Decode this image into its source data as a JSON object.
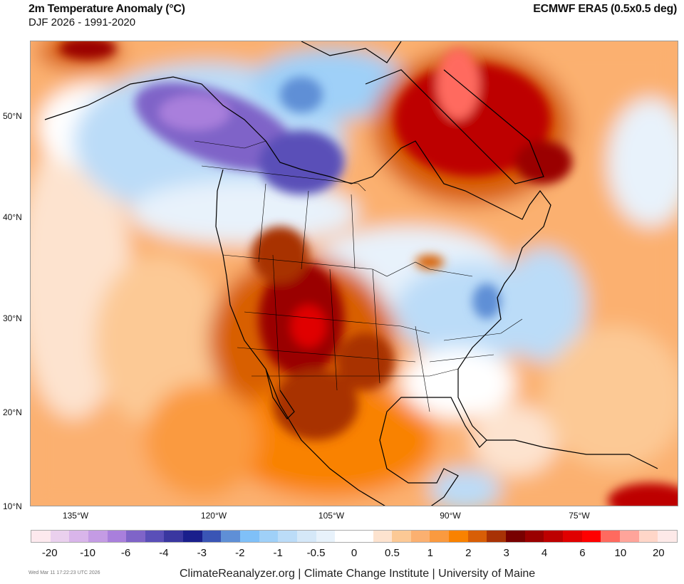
{
  "header": {
    "title": "2m Temperature Anomaly (°C)",
    "subtitle": "DJF 2026 - 1991-2020",
    "source": "ECMWF ERA5 (0.5x0.5 deg)"
  },
  "map": {
    "region": "North America",
    "latitude_labels": [
      "50°N",
      "40°N",
      "30°N",
      "20°N",
      "10°N"
    ],
    "longitude_labels": [
      "135°W",
      "120°W",
      "105°W",
      "90°W",
      "75°W"
    ]
  },
  "colorbar": {
    "colors": [
      "#fde9ee",
      "#ead0ee",
      "#d9b5ea",
      "#c49be4",
      "#a97fdc",
      "#7f64c8",
      "#5a4fb8",
      "#3a37a0",
      "#1a1f8c",
      "#3a55b5",
      "#5f8fd6",
      "#7fc0f8",
      "#9fd0f8",
      "#bbdcf8",
      "#d5e8f8",
      "#e8f2fb",
      "#ffffff",
      "#ffffff",
      "#fde3cf",
      "#fcc995",
      "#fbb070",
      "#fa9a3f",
      "#f98200",
      "#d85e06",
      "#a83205",
      "#780000",
      "#9a0000",
      "#bd0000",
      "#e00000",
      "#ff0000",
      "#ff6a5f",
      "#ffa49a",
      "#ffd6c8",
      "#fde9e8"
    ],
    "labels": [
      "-20",
      "-10",
      "-6",
      "-4",
      "-3",
      "-2",
      "-1",
      "-0.5",
      "0",
      "0.5",
      "1",
      "2",
      "3",
      "4",
      "6",
      "10",
      "20"
    ]
  },
  "footer": {
    "timestamp": "Wed Mar 11 17:22:23 UTC 2026",
    "credit": "ClimateReanalyzer.org | Climate Change Institute | University of Maine"
  }
}
